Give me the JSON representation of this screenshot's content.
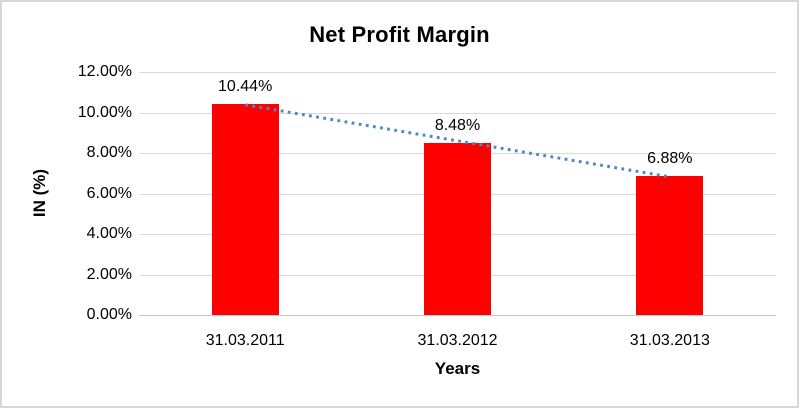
{
  "chart_data": {
    "type": "bar",
    "title": "Net Profit Margin",
    "xlabel": "Years",
    "ylabel": "IN (%)",
    "categories": [
      "31.03.2011",
      "31.03.2012",
      "31.03.2013"
    ],
    "values": [
      10.44,
      8.48,
      6.88
    ],
    "data_labels": [
      "10.44%",
      "8.48%",
      "6.88%"
    ],
    "y_ticks": [
      "12.00%",
      "10.00%",
      "8.00%",
      "6.00%",
      "4.00%",
      "2.00%",
      "0.00%"
    ],
    "ylim": [
      0,
      12
    ],
    "grid": true,
    "legend": "none",
    "bar_color": "#ff0000",
    "gridline_color": "#d9d9d9",
    "trendline": {
      "type": "linear",
      "style": "dotted",
      "color": "#4e86c8"
    }
  }
}
